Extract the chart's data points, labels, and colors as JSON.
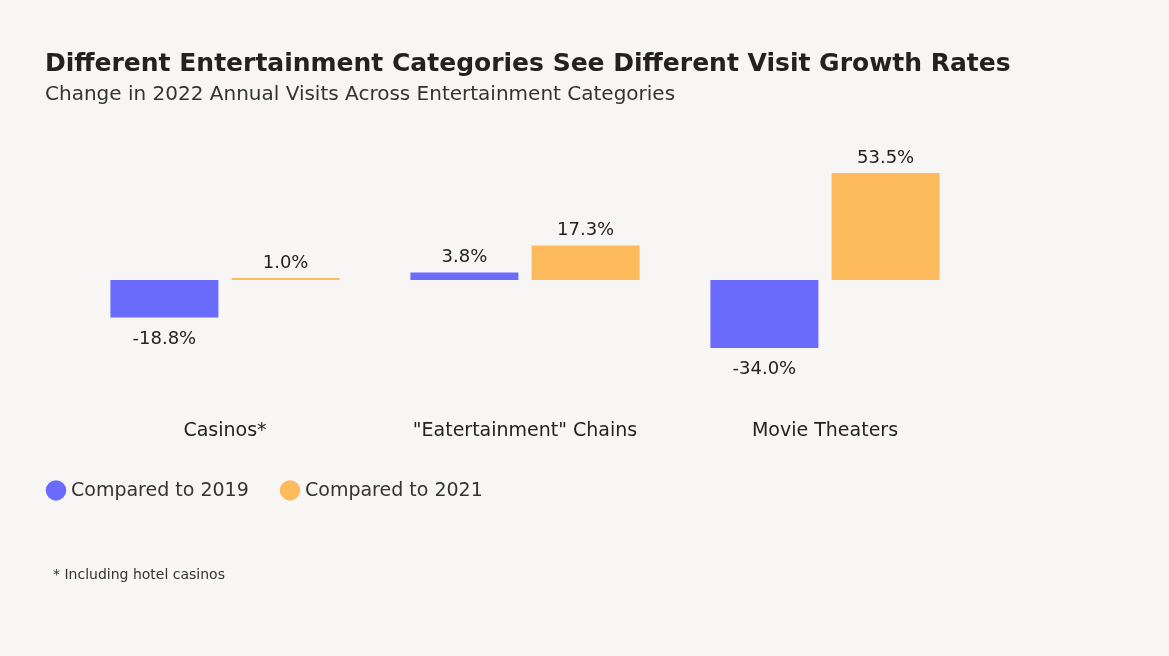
{
  "chart_data": {
    "type": "bar",
    "title": "Different Entertainment Categories See Different Visit Growth Rates",
    "subtitle": "Change in 2022 Annual Visits Across Entertainment Categories",
    "categories": [
      "Casinos*",
      "\"Eatertainment\" Chains",
      "Movie Theaters"
    ],
    "series": [
      {
        "name": "Compared to 2019",
        "color": "#6b6bfb",
        "values": [
          -18.8,
          3.8,
          -34.0
        ],
        "value_labels": [
          "-18.8%",
          "3.8%",
          "-34.0%"
        ]
      },
      {
        "name": "Compared to 2021",
        "color": "#fdbb5e",
        "values": [
          1.0,
          17.3,
          53.5
        ],
        "value_labels": [
          "1.0%",
          "17.3%",
          "53.5%"
        ]
      }
    ],
    "tick_labels": "x",
    "legend": "bottom",
    "annotations": [
      "* Including hotel casinos"
    ]
  }
}
